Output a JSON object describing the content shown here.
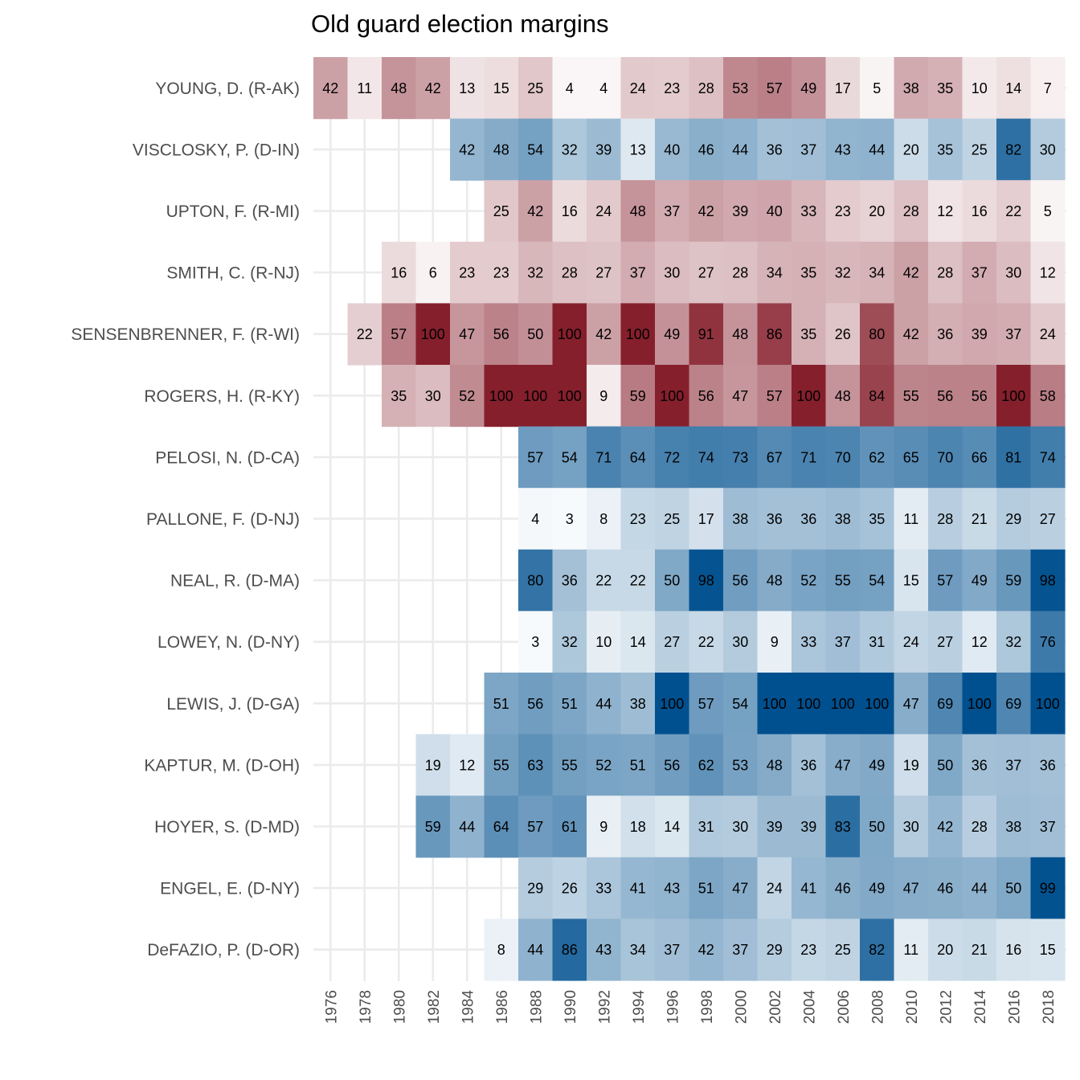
{
  "chart_data": {
    "type": "heatmap",
    "title": "Old guard election margins",
    "xlabel": "",
    "ylabel": "",
    "x": [
      1976,
      1978,
      1980,
      1982,
      1984,
      1986,
      1988,
      1990,
      1992,
      1994,
      1996,
      1998,
      2000,
      2002,
      2004,
      2006,
      2008,
      2010,
      2012,
      2014,
      2016,
      2018
    ],
    "rows": [
      {
        "label": "YOUNG, D. (R-AK)",
        "party": "R",
        "values": [
          42,
          11,
          48,
          42,
          13,
          15,
          25,
          4,
          4,
          24,
          23,
          28,
          53,
          57,
          49,
          17,
          5,
          38,
          35,
          10,
          14,
          7
        ]
      },
      {
        "label": "VISCLOSKY, P. (D-IN)",
        "party": "D",
        "values": [
          null,
          null,
          null,
          null,
          42,
          48,
          54,
          32,
          39,
          13,
          40,
          46,
          44,
          36,
          37,
          43,
          44,
          20,
          35,
          25,
          82,
          30
        ]
      },
      {
        "label": "UPTON, F. (R-MI)",
        "party": "R",
        "values": [
          null,
          null,
          null,
          null,
          null,
          25,
          42,
          16,
          24,
          48,
          37,
          42,
          39,
          40,
          33,
          23,
          20,
          28,
          12,
          16,
          22,
          5
        ]
      },
      {
        "label": "SMITH, C. (R-NJ)",
        "party": "R",
        "values": [
          null,
          null,
          16,
          6,
          23,
          23,
          32,
          28,
          27,
          37,
          30,
          27,
          28,
          34,
          35,
          32,
          34,
          42,
          28,
          37,
          30,
          12
        ]
      },
      {
        "label": "SENSENBRENNER, F. (R-WI)",
        "party": "R",
        "values": [
          null,
          22,
          57,
          100,
          47,
          56,
          50,
          100,
          42,
          100,
          49,
          91,
          48,
          86,
          35,
          26,
          80,
          42,
          36,
          39,
          37,
          24
        ]
      },
      {
        "label": "ROGERS, H. (R-KY)",
        "party": "R",
        "values": [
          null,
          null,
          35,
          30,
          52,
          100,
          100,
          100,
          9,
          59,
          100,
          56,
          47,
          57,
          100,
          48,
          84,
          55,
          56,
          56,
          100,
          58
        ]
      },
      {
        "label": "PELOSI, N. (D-CA)",
        "party": "D",
        "values": [
          null,
          null,
          null,
          null,
          null,
          null,
          57,
          54,
          71,
          64,
          72,
          74,
          73,
          67,
          71,
          70,
          62,
          65,
          70,
          66,
          81,
          74
        ]
      },
      {
        "label": "PALLONE, F. (D-NJ)",
        "party": "D",
        "values": [
          null,
          null,
          null,
          null,
          null,
          null,
          4,
          3,
          8,
          23,
          25,
          17,
          38,
          36,
          36,
          38,
          35,
          11,
          28,
          21,
          29,
          27
        ]
      },
      {
        "label": "NEAL, R. (D-MA)",
        "party": "D",
        "values": [
          null,
          null,
          null,
          null,
          null,
          null,
          80,
          36,
          22,
          22,
          50,
          98,
          56,
          48,
          52,
          55,
          54,
          15,
          57,
          49,
          59,
          98
        ]
      },
      {
        "label": "LOWEY, N. (D-NY)",
        "party": "D",
        "values": [
          null,
          null,
          null,
          null,
          null,
          null,
          3,
          32,
          10,
          14,
          27,
          22,
          30,
          9,
          33,
          37,
          31,
          24,
          27,
          12,
          32,
          76
        ]
      },
      {
        "label": "LEWIS, J. (D-GA)",
        "party": "D",
        "values": [
          null,
          null,
          null,
          null,
          null,
          51,
          56,
          51,
          44,
          38,
          100,
          57,
          54,
          100,
          100,
          100,
          100,
          47,
          69,
          100,
          69,
          100
        ]
      },
      {
        "label": "KAPTUR, M. (D-OH)",
        "party": "D",
        "values": [
          null,
          null,
          null,
          19,
          12,
          55,
          63,
          55,
          52,
          51,
          56,
          62,
          53,
          48,
          36,
          47,
          49,
          19,
          50,
          36,
          37,
          36
        ]
      },
      {
        "label": "HOYER, S. (D-MD)",
        "party": "D",
        "values": [
          null,
          null,
          null,
          59,
          44,
          64,
          57,
          61,
          9,
          18,
          14,
          31,
          30,
          39,
          39,
          83,
          50,
          30,
          42,
          28,
          38,
          37
        ]
      },
      {
        "label": "ENGEL, E. (D-NY)",
        "party": "D",
        "values": [
          null,
          null,
          null,
          null,
          null,
          null,
          29,
          26,
          33,
          41,
          43,
          51,
          47,
          24,
          41,
          46,
          49,
          47,
          46,
          44,
          50,
          99
        ]
      },
      {
        "label": "DeFAZIO, P. (D-OR)",
        "party": "D",
        "values": [
          null,
          null,
          null,
          null,
          null,
          8,
          44,
          86,
          43,
          34,
          37,
          42,
          37,
          29,
          23,
          25,
          82,
          11,
          20,
          21,
          16,
          15
        ]
      }
    ],
    "colors": {
      "republican": "#861f2c",
      "democrat": "#00508f",
      "low": "#ffffff",
      "grid": "#ebebeb"
    },
    "grid": true,
    "legend": "none"
  }
}
